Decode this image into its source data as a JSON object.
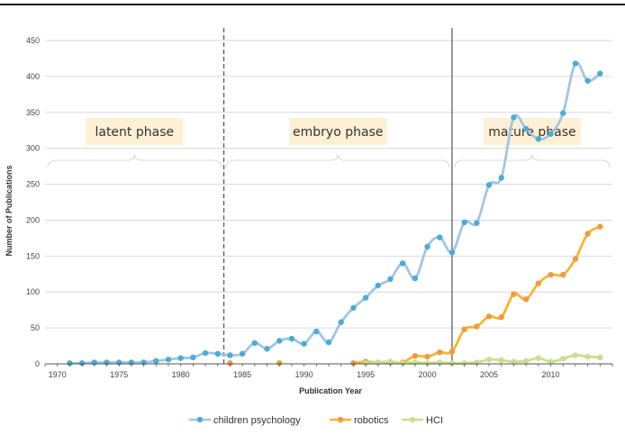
{
  "chart_data": {
    "type": "line",
    "xlabel": "Publication Year",
    "ylabel": "Number of Publications",
    "xlim": [
      1969,
      2015
    ],
    "ylim": [
      0,
      450
    ],
    "xticks": [
      1970,
      1975,
      1980,
      1985,
      1990,
      1995,
      2000,
      2005,
      2010
    ],
    "yticks": [
      0,
      50,
      100,
      150,
      200,
      250,
      300,
      350,
      400,
      450
    ],
    "grid": "horizontal",
    "legend": "bottom",
    "phase_boundaries": [
      {
        "x": 1983.5,
        "style": "dashed"
      },
      {
        "x": 2002,
        "style": "solid"
      }
    ],
    "phases": [
      {
        "label": "latent phase",
        "x_start": 1969,
        "x_end": 1983.5
      },
      {
        "label": "embryo phase",
        "x_start": 1983.5,
        "x_end": 2002
      },
      {
        "label": "mature phase",
        "x_start": 2002,
        "x_end": 2015
      }
    ],
    "series": [
      {
        "name": "children psychology",
        "line_color": "#a4c5e3",
        "marker_color": "#4bacd6",
        "x": [
          1971,
          1972,
          1973,
          1974,
          1975,
          1976,
          1977,
          1978,
          1979,
          1980,
          1981,
          1982,
          1983,
          1984,
          1985,
          1986,
          1987,
          1988,
          1989,
          1990,
          1991,
          1992,
          1993,
          1994,
          1995,
          1996,
          1997,
          1998,
          1999,
          2000,
          2001,
          2002,
          2003,
          2004,
          2005,
          2006,
          2007,
          2008,
          2009,
          2010,
          2011,
          2012,
          2013,
          2014
        ],
        "values": [
          1,
          1,
          2,
          2,
          2,
          2,
          2,
          4,
          6,
          8,
          9,
          15,
          14,
          12,
          14,
          29,
          21,
          32,
          35,
          28,
          45,
          30,
          58,
          78,
          92,
          109,
          118,
          140,
          119,
          163,
          176,
          155,
          197,
          196,
          249,
          259,
          343,
          327,
          313,
          320,
          349,
          418,
          394,
          404
        ]
      },
      {
        "name": "robotics",
        "line_color": "#f7b530",
        "marker_color": "#f29a3c",
        "x": [
          1984,
          1988,
          1994,
          1995,
          1996,
          1997,
          1998,
          1999,
          2000,
          2001,
          2002,
          2003,
          2004,
          2005,
          2006,
          2007,
          2008,
          2009,
          2010,
          2011,
          2012,
          2013,
          2014
        ],
        "values": [
          1,
          1,
          1,
          3,
          2,
          2,
          2,
          11,
          10,
          16,
          17,
          48,
          52,
          66,
          65,
          97,
          90,
          112,
          124,
          124,
          146,
          181,
          191
        ]
      },
      {
        "name": "HCI",
        "line_color": "#c8e08c",
        "marker_color": "#c8e08c",
        "x": [
          1995,
          1996,
          1997,
          1998,
          1999,
          2000,
          2001,
          2002,
          2003,
          2004,
          2005,
          2006,
          2007,
          2008,
          2009,
          2010,
          2011,
          2012,
          2013,
          2014
        ],
        "values": [
          1,
          2,
          3,
          1,
          2,
          1,
          2,
          1,
          1,
          2,
          6,
          5,
          3,
          4,
          8,
          3,
          7,
          12,
          10,
          9
        ]
      }
    ]
  }
}
